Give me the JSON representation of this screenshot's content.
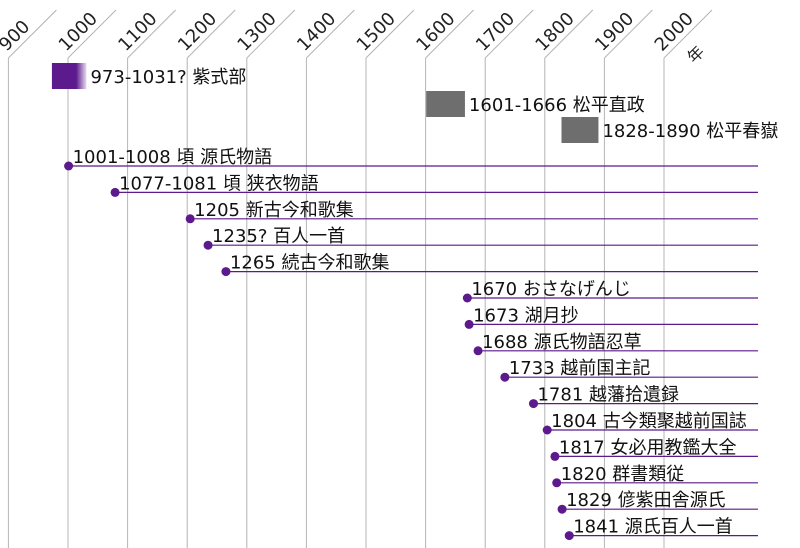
{
  "chart_data": {
    "type": "timeline",
    "x_unit_label": "年",
    "x_ticks": [
      900,
      1000,
      1100,
      1200,
      1300,
      1400,
      1500,
      1600,
      1700,
      1800,
      1900,
      2000
    ],
    "colors": {
      "accent": "#5c1a8c",
      "gray_bar": "#6e6e6e",
      "grid": "#b4b4b4"
    },
    "people": [
      {
        "label": "973-1031? 紫式部",
        "start": 973,
        "end": 1031,
        "color": "#5c1a8c",
        "fade": true
      },
      {
        "label": "1601-1666 松平直政",
        "start": 1601,
        "end": 1666,
        "color": "#6e6e6e",
        "fade": false
      },
      {
        "label": "1828-1890 松平春嶽",
        "start": 1828,
        "end": 1890,
        "color": "#6e6e6e",
        "fade": false
      }
    ],
    "events": [
      {
        "label": "1001-1008 頃 源氏物語",
        "year": 1001
      },
      {
        "label": "1077-1081 頃 狭衣物語",
        "year": 1079
      },
      {
        "label": "1205 新古今和歌集",
        "year": 1205
      },
      {
        "label": "1235? 百人一首",
        "year": 1235
      },
      {
        "label": "1265 続古今和歌集",
        "year": 1265
      },
      {
        "label": "1670 おさなげんじ",
        "year": 1670
      },
      {
        "label": "1673 湖月抄",
        "year": 1673
      },
      {
        "label": "1688 源氏物語忍草",
        "year": 1688
      },
      {
        "label": "1733 越前国主記",
        "year": 1733
      },
      {
        "label": "1781 越藩拾遺録",
        "year": 1781
      },
      {
        "label": "1804 古今類聚越前国誌",
        "year": 1804
      },
      {
        "label": "1817 女必用教鑑大全",
        "year": 1817
      },
      {
        "label": "1820 群書類従",
        "year": 1820
      },
      {
        "label": "1829 偐紫田舎源氏",
        "year": 1829
      },
      {
        "label": "1841 源氏百人一首",
        "year": 1841
      }
    ]
  }
}
